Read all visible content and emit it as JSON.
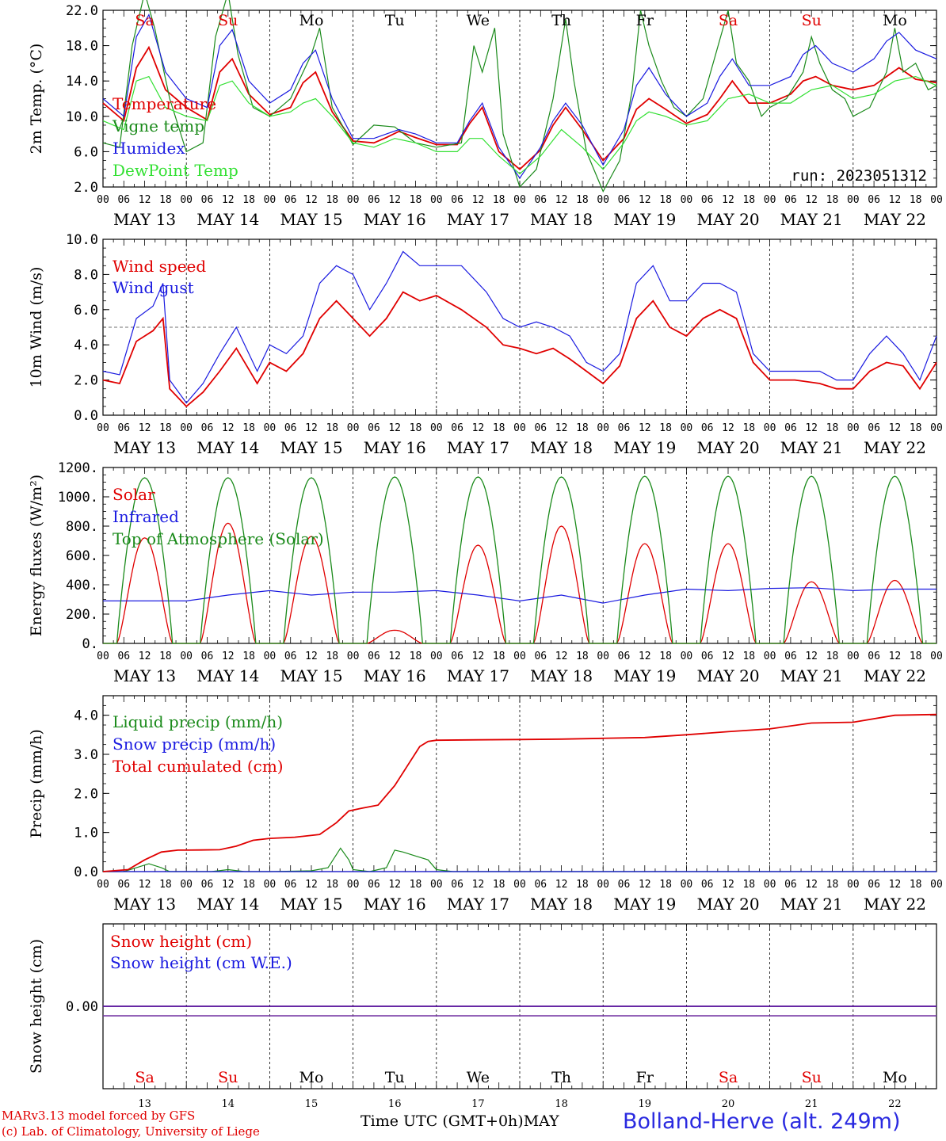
{
  "colors": {
    "red": "#e00000",
    "green": "#1a8a1a",
    "blue": "#1a1ae0",
    "lightgreen": "#33e033",
    "purple": "#7030a0"
  },
  "day_letters": [
    {
      "label": "Sa",
      "weekend": true
    },
    {
      "label": "Su",
      "weekend": true
    },
    {
      "label": "Mo",
      "weekend": false
    },
    {
      "label": "Tu",
      "weekend": false
    },
    {
      "label": "We",
      "weekend": false
    },
    {
      "label": "Th",
      "weekend": false
    },
    {
      "label": "Fr",
      "weekend": false
    },
    {
      "label": "Sa",
      "weekend": true
    },
    {
      "label": "Su",
      "weekend": true
    },
    {
      "label": "Mo",
      "weekend": false
    }
  ],
  "date_labels": [
    "MAY 13",
    "MAY 14",
    "MAY 15",
    "MAY 16",
    "MAY 17",
    "MAY 18",
    "MAY 19",
    "MAY 20",
    "MAY 21",
    "MAY 22"
  ],
  "hour_labels": [
    "00",
    "06",
    "12",
    "18"
  ],
  "hour_end_label": "00",
  "day_numbers": [
    "13",
    "14",
    "15",
    "16",
    "17",
    "18",
    "19",
    "20",
    "21",
    "22"
  ],
  "footer": {
    "model_line1": "MARv3.13 model forced by GFS",
    "model_line2": "(c) Lab. of Climatology, University of Liege",
    "time_label": "Time UTC (GMT+0h)",
    "month": "MAY",
    "station": "Bolland-Herve (alt. 249m)"
  },
  "chart_data": [
    {
      "type": "line",
      "ylabel": "2m Temp. (°C)",
      "yticks": [
        "2.0",
        "6.0",
        "10.0",
        "14.0",
        "18.0",
        "22.0"
      ],
      "ylim": [
        2,
        22
      ],
      "annotation": "run: 2023051312",
      "x_days": 10,
      "series": [
        {
          "name": "Temperature",
          "color": "red",
          "day": [
            0,
            0.25,
            0.4,
            0.55,
            0.75,
            1,
            1.25,
            1.4,
            1.55,
            1.75,
            2,
            2.25,
            2.4,
            2.55,
            2.75,
            3,
            3.25,
            3.4,
            3.55,
            3.75,
            4,
            4.25,
            4.4,
            4.55,
            4.75,
            5,
            5.25,
            5.4,
            5.55,
            5.75,
            6,
            6.25,
            6.4,
            6.55,
            6.75,
            7,
            7.25,
            7.4,
            7.55,
            7.75,
            8,
            8.25,
            8.4,
            8.55,
            8.75,
            9,
            9.25,
            9.4,
            9.55,
            9.75,
            10
          ],
          "values": [
            11.5,
            9.5,
            15.5,
            17.8,
            13.0,
            11.0,
            9.6,
            15.0,
            16.5,
            12.5,
            10.2,
            11.0,
            13.8,
            15.0,
            10.5,
            7.2,
            7.0,
            7.6,
            8.3,
            7.6,
            6.8,
            6.8,
            9.2,
            11.0,
            6.0,
            4.0,
            6.2,
            9.0,
            11.0,
            8.5,
            5.0,
            7.5,
            10.8,
            12.0,
            10.8,
            9.2,
            10.2,
            12.0,
            14.0,
            11.5,
            11.5,
            12.5,
            14.0,
            14.5,
            13.5,
            13.0,
            13.5,
            14.5,
            15.5,
            14.2,
            13.8
          ]
        },
        {
          "name": "Vigne temp",
          "color": "green",
          "day": [
            0,
            0.2,
            0.35,
            0.5,
            0.62,
            0.8,
            1,
            1.2,
            1.35,
            1.5,
            1.62,
            1.8,
            2,
            2.25,
            2.5,
            2.6,
            2.75,
            3,
            3.25,
            3.5,
            3.75,
            4,
            4.3,
            4.45,
            4.55,
            4.7,
            4.8,
            5,
            5.2,
            5.4,
            5.55,
            5.65,
            5.8,
            6,
            6.2,
            6.35,
            6.45,
            6.55,
            6.7,
            6.85,
            7,
            7.2,
            7.35,
            7.5,
            7.6,
            7.75,
            7.9,
            8,
            8.2,
            8.4,
            8.5,
            8.6,
            8.75,
            8.9,
            9,
            9.2,
            9.4,
            9.5,
            9.6,
            9.75,
            9.9,
            10
          ],
          "values": [
            7,
            6.5,
            18,
            24,
            20,
            12,
            6,
            7,
            19,
            24,
            17,
            11,
            10,
            12,
            17,
            20,
            11,
            6.8,
            9,
            8.8,
            7,
            6.5,
            7,
            18,
            15,
            20,
            8,
            2,
            4,
            12,
            21,
            14,
            6,
            1.5,
            5,
            13,
            22,
            18,
            14,
            11,
            10,
            12,
            17,
            22,
            16,
            14,
            10,
            11,
            12,
            15,
            19,
            16,
            13,
            12,
            10,
            11,
            15,
            20,
            15,
            16,
            13,
            13.5
          ]
        },
        {
          "name": "Humidex",
          "color": "blue",
          "day": [
            0,
            0.25,
            0.4,
            0.55,
            0.75,
            1,
            1.25,
            1.4,
            1.55,
            1.75,
            2,
            2.25,
            2.4,
            2.55,
            2.75,
            3,
            3.25,
            3.4,
            3.55,
            3.75,
            4,
            4.25,
            4.4,
            4.55,
            4.75,
            5,
            5.25,
            5.4,
            5.55,
            5.75,
            6,
            6.25,
            6.4,
            6.55,
            6.75,
            7,
            7.25,
            7.4,
            7.55,
            7.75,
            8,
            8.25,
            8.4,
            8.55,
            8.75,
            9,
            9.25,
            9.4,
            9.55,
            9.75,
            10
          ],
          "values": [
            12,
            10,
            19,
            21.5,
            15,
            12,
            11,
            18,
            19.8,
            14,
            11.5,
            13,
            16,
            17.5,
            12,
            7.5,
            7.5,
            8,
            8.5,
            8,
            7,
            7,
            9.5,
            11.5,
            6.5,
            3,
            6.5,
            9.5,
            11.5,
            9,
            4.5,
            8.5,
            13.5,
            15.5,
            12.5,
            10,
            11.5,
            14.5,
            16.5,
            13.5,
            13.5,
            14.5,
            17,
            18,
            16,
            15,
            16.5,
            18.5,
            19.5,
            17.5,
            16.5
          ]
        },
        {
          "name": "DewPoint Temp",
          "color": "lightgreen",
          "day": [
            0,
            0.25,
            0.4,
            0.55,
            0.75,
            1,
            1.25,
            1.4,
            1.55,
            1.75,
            2,
            2.25,
            2.4,
            2.55,
            2.75,
            3,
            3.25,
            3.5,
            3.75,
            4,
            4.25,
            4.4,
            4.55,
            4.75,
            5,
            5.25,
            5.5,
            5.75,
            6,
            6.25,
            6.4,
            6.55,
            6.75,
            7,
            7.25,
            7.5,
            7.75,
            8,
            8.25,
            8.5,
            8.75,
            9,
            9.25,
            9.5,
            9.75,
            10
          ],
          "values": [
            9.5,
            8.5,
            14,
            14.5,
            11,
            10,
            9.5,
            13.5,
            14,
            11.5,
            10,
            10.5,
            11.5,
            12,
            10,
            7,
            6.5,
            7.5,
            7,
            6,
            6,
            7.5,
            7.5,
            5.5,
            3.5,
            5.5,
            8.5,
            6.5,
            4,
            7,
            9.5,
            10.5,
            10,
            9,
            9.5,
            12,
            12.5,
            11.5,
            11.5,
            13,
            13.5,
            12,
            12.5,
            14,
            14.5,
            13.5
          ]
        }
      ]
    },
    {
      "type": "line",
      "ylabel": "10m Wind (m/s)",
      "yticks": [
        "0.0",
        "2.0",
        "4.0",
        "6.0",
        "8.0",
        "10.0"
      ],
      "ylim": [
        0,
        10
      ],
      "reference_line": 5.0,
      "series": [
        {
          "name": "Wind speed",
          "color": "red",
          "day": [
            0,
            0.2,
            0.4,
            0.6,
            0.72,
            0.8,
            1,
            1.2,
            1.4,
            1.6,
            1.85,
            2,
            2.2,
            2.4,
            2.6,
            2.8,
            3,
            3.2,
            3.4,
            3.6,
            3.8,
            4,
            4.3,
            4.6,
            4.8,
            5,
            5.2,
            5.4,
            5.6,
            5.8,
            6,
            6.2,
            6.4,
            6.6,
            6.8,
            7,
            7.2,
            7.4,
            7.6,
            7.8,
            8,
            8.3,
            8.6,
            8.8,
            9,
            9.2,
            9.4,
            9.6,
            9.8,
            10
          ],
          "values": [
            2,
            1.8,
            4.2,
            4.8,
            5.5,
            1.5,
            0.5,
            1.3,
            2.5,
            3.8,
            1.8,
            3,
            2.5,
            3.5,
            5.5,
            6.5,
            5.5,
            4.5,
            5.5,
            7,
            6.5,
            6.8,
            6,
            5,
            4,
            3.8,
            3.5,
            3.8,
            3.2,
            2.5,
            1.8,
            2.8,
            5.5,
            6.5,
            5,
            4.5,
            5.5,
            6,
            5.5,
            3,
            2,
            2,
            1.8,
            1.5,
            1.5,
            2.5,
            3,
            2.8,
            1.5,
            3
          ]
        },
        {
          "name": "Wind gust",
          "color": "blue",
          "day": [
            0,
            0.2,
            0.4,
            0.6,
            0.72,
            0.8,
            1,
            1.2,
            1.4,
            1.6,
            1.85,
            2,
            2.2,
            2.4,
            2.6,
            2.8,
            3,
            3.2,
            3.4,
            3.6,
            3.8,
            4,
            4.3,
            4.6,
            4.8,
            5,
            5.2,
            5.4,
            5.6,
            5.8,
            6,
            6.2,
            6.4,
            6.6,
            6.8,
            7,
            7.2,
            7.4,
            7.6,
            7.8,
            8,
            8.3,
            8.6,
            8.8,
            9,
            9.2,
            9.4,
            9.6,
            9.8,
            10
          ],
          "values": [
            2.5,
            2.3,
            5.5,
            6.2,
            7.5,
            2,
            0.7,
            1.8,
            3.5,
            5,
            2.5,
            4,
            3.5,
            4.5,
            7.5,
            8.5,
            8,
            6,
            7.5,
            9.3,
            8.5,
            8.5,
            8.5,
            7,
            5.5,
            5,
            5.3,
            5,
            4.5,
            3,
            2.5,
            3.5,
            7.5,
            8.5,
            6.5,
            6.5,
            7.5,
            7.5,
            7,
            3.5,
            2.5,
            2.5,
            2.5,
            2,
            2,
            3.5,
            4.5,
            3.5,
            2,
            4.5
          ]
        }
      ]
    },
    {
      "type": "line",
      "ylabel": "Energy fluxes (W/m²)",
      "yticks": [
        "0.",
        "200.",
        "400.",
        "600.",
        "800.",
        "1000.",
        "1200."
      ],
      "ylim": [
        0,
        1200
      ],
      "series": [
        {
          "name": "Solar",
          "color": "red",
          "peaks": [
            720,
            820,
            730,
            90,
            670,
            800,
            680,
            680,
            420,
            430
          ]
        },
        {
          "name": "Infrared",
          "color": "blue",
          "day": [
            0,
            1,
            1.5,
            2,
            2.5,
            3,
            3.5,
            4,
            4.5,
            5,
            5.5,
            6,
            6.5,
            7,
            7.5,
            8,
            8.5,
            9,
            9.5,
            10
          ],
          "values": [
            290,
            290,
            330,
            360,
            330,
            350,
            350,
            360,
            330,
            290,
            330,
            275,
            330,
            370,
            360,
            375,
            380,
            360,
            370,
            370
          ]
        },
        {
          "name": "Top of Atmosphere (Solar)",
          "color": "green",
          "peaks": [
            1130,
            1130,
            1130,
            1135,
            1135,
            1135,
            1140,
            1140,
            1140,
            1140
          ]
        }
      ]
    },
    {
      "type": "line",
      "ylabel": "Precip (mm/h)",
      "yticks": [
        "0.0",
        "1.0",
        "2.0",
        "3.0",
        "4.0"
      ],
      "ylim": [
        0,
        4.5
      ],
      "series": [
        {
          "name": "Liquid precip (mm/h)",
          "color": "green",
          "day": [
            0,
            0.25,
            0.4,
            0.55,
            0.7,
            0.8,
            1,
            1.3,
            1.5,
            1.7,
            2,
            2.5,
            2.7,
            2.85,
            2.95,
            3,
            3.2,
            3.4,
            3.5,
            3.6,
            3.75,
            3.9,
            4,
            4.2,
            10
          ],
          "values": [
            0,
            0,
            0.1,
            0.2,
            0.1,
            0,
            0,
            0,
            0.05,
            0,
            0,
            0.02,
            0.1,
            0.6,
            0.3,
            0.05,
            0,
            0.1,
            0.55,
            0.5,
            0.4,
            0.3,
            0.05,
            0,
            0
          ]
        },
        {
          "name": "Snow precip (mm/h)",
          "color": "blue",
          "day": [
            0,
            10
          ],
          "values": [
            0,
            0
          ]
        },
        {
          "name": "Total cumulated (cm)",
          "color": "red",
          "day": [
            0,
            0.3,
            0.5,
            0.7,
            0.9,
            1,
            1.4,
            1.6,
            1.8,
            2,
            2.3,
            2.6,
            2.8,
            2.95,
            3.1,
            3.3,
            3.5,
            3.65,
            3.8,
            3.9,
            4,
            4.5,
            5,
            5.5,
            6,
            6.5,
            7,
            7.5,
            8,
            8.5,
            9,
            9.5,
            10
          ],
          "values": [
            0,
            0.05,
            0.3,
            0.5,
            0.55,
            0.55,
            0.56,
            0.65,
            0.8,
            0.85,
            0.88,
            0.95,
            1.25,
            1.55,
            1.62,
            1.7,
            2.2,
            2.7,
            3.2,
            3.33,
            3.36,
            3.37,
            3.38,
            3.39,
            3.41,
            3.43,
            3.5,
            3.58,
            3.65,
            3.8,
            3.82,
            4.0,
            4.02
          ]
        }
      ]
    },
    {
      "type": "line",
      "ylabel": "Snow height (cm)",
      "yticks": [
        "0.00"
      ],
      "ylim": [
        -1,
        1
      ],
      "series": [
        {
          "name": "Snow height (cm)",
          "color": "red",
          "day": [
            0,
            10
          ],
          "values": [
            0,
            0
          ]
        },
        {
          "name": "Snow height (cm W.E.)",
          "color": "blue",
          "day": [
            0,
            10
          ],
          "values": [
            0,
            0
          ]
        }
      ]
    }
  ]
}
